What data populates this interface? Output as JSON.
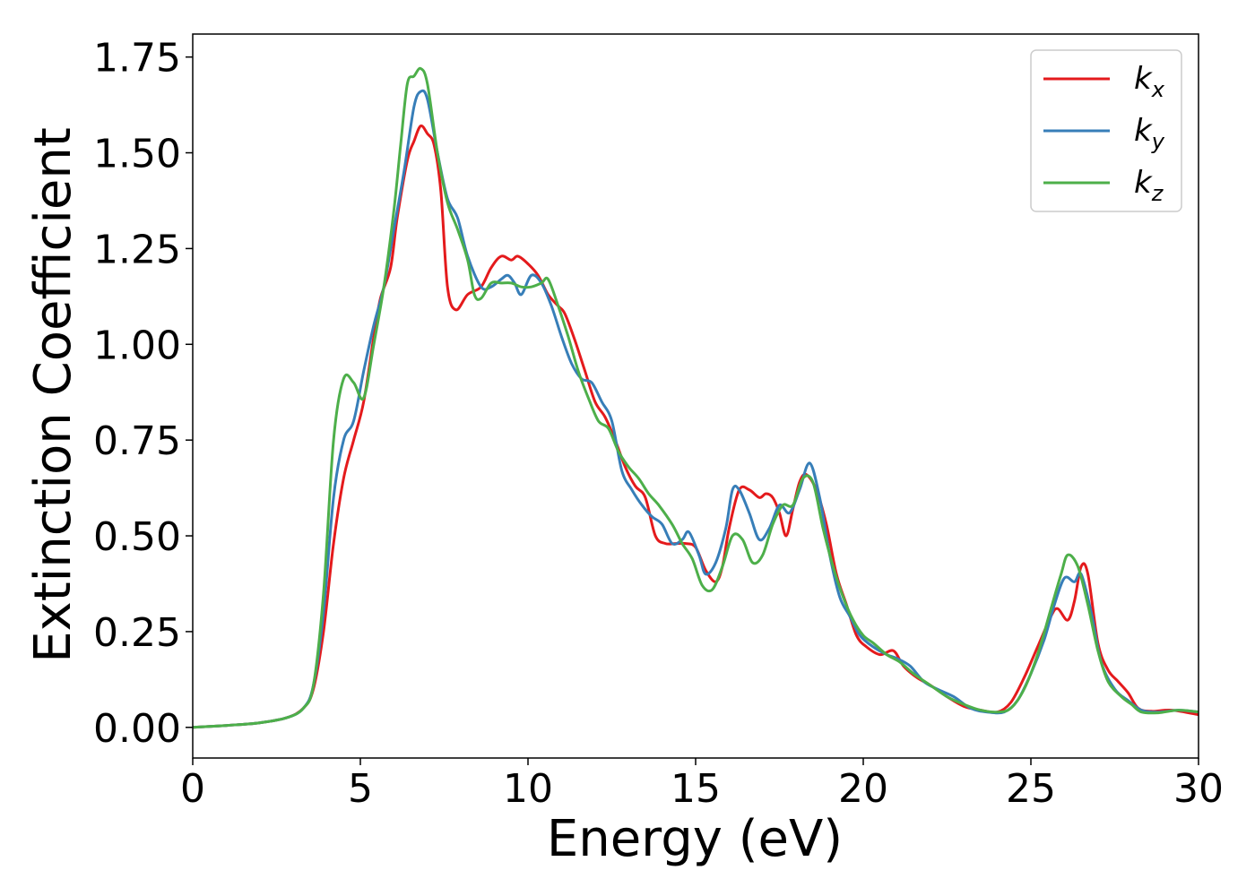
{
  "chart_data": {
    "type": "line",
    "xlabel": "Energy (eV)",
    "ylabel": "Extinction Coefficient",
    "xlim": [
      0,
      30
    ],
    "ylim": [
      -0.08,
      1.81
    ],
    "x_ticks": [
      "0",
      "5",
      "10",
      "15",
      "20",
      "25",
      "30"
    ],
    "y_ticks": [
      "0.00",
      "0.25",
      "0.50",
      "0.75",
      "1.00",
      "1.25",
      "1.50",
      "1.75"
    ],
    "grid": false,
    "legend_position": "top-right",
    "series": [
      {
        "name": "k",
        "subscript": "x",
        "color": "#e41a1c",
        "points": [
          [
            0,
            0.0
          ],
          [
            1,
            0.005
          ],
          [
            2,
            0.012
          ],
          [
            2.8,
            0.025
          ],
          [
            3.3,
            0.05
          ],
          [
            3.6,
            0.1
          ],
          [
            3.9,
            0.25
          ],
          [
            4.2,
            0.48
          ],
          [
            4.5,
            0.65
          ],
          [
            4.8,
            0.75
          ],
          [
            5.1,
            0.85
          ],
          [
            5.4,
            1.02
          ],
          [
            5.6,
            1.12
          ],
          [
            5.9,
            1.2
          ],
          [
            6.1,
            1.33
          ],
          [
            6.4,
            1.48
          ],
          [
            6.6,
            1.53
          ],
          [
            6.8,
            1.57
          ],
          [
            7.0,
            1.55
          ],
          [
            7.2,
            1.52
          ],
          [
            7.4,
            1.4
          ],
          [
            7.6,
            1.15
          ],
          [
            7.85,
            1.09
          ],
          [
            8.2,
            1.13
          ],
          [
            8.6,
            1.15
          ],
          [
            8.9,
            1.2
          ],
          [
            9.2,
            1.23
          ],
          [
            9.5,
            1.22
          ],
          [
            9.7,
            1.23
          ],
          [
            10.0,
            1.21
          ],
          [
            10.3,
            1.18
          ],
          [
            10.6,
            1.13
          ],
          [
            10.9,
            1.1
          ],
          [
            11.1,
            1.08
          ],
          [
            11.4,
            1.01
          ],
          [
            11.7,
            0.93
          ],
          [
            12.0,
            0.85
          ],
          [
            12.3,
            0.81
          ],
          [
            12.6,
            0.75
          ],
          [
            12.9,
            0.68
          ],
          [
            13.2,
            0.63
          ],
          [
            13.5,
            0.6
          ],
          [
            13.8,
            0.5
          ],
          [
            14.1,
            0.48
          ],
          [
            14.4,
            0.48
          ],
          [
            14.7,
            0.48
          ],
          [
            15.0,
            0.47
          ],
          [
            15.3,
            0.41
          ],
          [
            15.6,
            0.38
          ],
          [
            15.8,
            0.42
          ],
          [
            16.0,
            0.52
          ],
          [
            16.3,
            0.62
          ],
          [
            16.6,
            0.62
          ],
          [
            16.9,
            0.6
          ],
          [
            17.1,
            0.61
          ],
          [
            17.3,
            0.6
          ],
          [
            17.5,
            0.56
          ],
          [
            17.7,
            0.5
          ],
          [
            17.9,
            0.57
          ],
          [
            18.1,
            0.64
          ],
          [
            18.3,
            0.66
          ],
          [
            18.6,
            0.62
          ],
          [
            18.9,
            0.53
          ],
          [
            19.2,
            0.4
          ],
          [
            19.5,
            0.32
          ],
          [
            19.8,
            0.24
          ],
          [
            20.1,
            0.21
          ],
          [
            20.5,
            0.19
          ],
          [
            20.9,
            0.2
          ],
          [
            21.2,
            0.16
          ],
          [
            21.6,
            0.13
          ],
          [
            22.0,
            0.11
          ],
          [
            22.5,
            0.08
          ],
          [
            23.0,
            0.055
          ],
          [
            23.5,
            0.045
          ],
          [
            24.0,
            0.04
          ],
          [
            24.4,
            0.065
          ],
          [
            24.8,
            0.13
          ],
          [
            25.2,
            0.21
          ],
          [
            25.6,
            0.29
          ],
          [
            25.8,
            0.31
          ],
          [
            26.1,
            0.28
          ],
          [
            26.3,
            0.33
          ],
          [
            26.5,
            0.42
          ],
          [
            26.7,
            0.4
          ],
          [
            27.0,
            0.22
          ],
          [
            27.3,
            0.15
          ],
          [
            27.6,
            0.12
          ],
          [
            27.9,
            0.09
          ],
          [
            28.2,
            0.05
          ],
          [
            28.6,
            0.042
          ],
          [
            29.2,
            0.045
          ],
          [
            30,
            0.033
          ]
        ]
      },
      {
        "name": "k",
        "subscript": "y",
        "color": "#377eb8",
        "points": [
          [
            0,
            0.0
          ],
          [
            1,
            0.005
          ],
          [
            2,
            0.012
          ],
          [
            2.8,
            0.025
          ],
          [
            3.3,
            0.05
          ],
          [
            3.6,
            0.11
          ],
          [
            3.9,
            0.3
          ],
          [
            4.2,
            0.6
          ],
          [
            4.5,
            0.75
          ],
          [
            4.8,
            0.8
          ],
          [
            5.1,
            0.93
          ],
          [
            5.4,
            1.05
          ],
          [
            5.7,
            1.15
          ],
          [
            6.0,
            1.3
          ],
          [
            6.3,
            1.45
          ],
          [
            6.6,
            1.62
          ],
          [
            6.8,
            1.66
          ],
          [
            7.0,
            1.64
          ],
          [
            7.3,
            1.5
          ],
          [
            7.6,
            1.38
          ],
          [
            7.9,
            1.33
          ],
          [
            8.2,
            1.23
          ],
          [
            8.6,
            1.15
          ],
          [
            8.9,
            1.15
          ],
          [
            9.2,
            1.17
          ],
          [
            9.4,
            1.18
          ],
          [
            9.6,
            1.16
          ],
          [
            9.8,
            1.13
          ],
          [
            10.1,
            1.18
          ],
          [
            10.4,
            1.16
          ],
          [
            10.7,
            1.1
          ],
          [
            11.0,
            1.02
          ],
          [
            11.3,
            0.95
          ],
          [
            11.6,
            0.91
          ],
          [
            11.9,
            0.9
          ],
          [
            12.2,
            0.85
          ],
          [
            12.5,
            0.8
          ],
          [
            12.8,
            0.67
          ],
          [
            13.1,
            0.62
          ],
          [
            13.4,
            0.58
          ],
          [
            13.7,
            0.55
          ],
          [
            14.0,
            0.53
          ],
          [
            14.3,
            0.48
          ],
          [
            14.6,
            0.49
          ],
          [
            14.8,
            0.51
          ],
          [
            15.1,
            0.45
          ],
          [
            15.3,
            0.4
          ],
          [
            15.6,
            0.43
          ],
          [
            15.9,
            0.52
          ],
          [
            16.1,
            0.62
          ],
          [
            16.3,
            0.62
          ],
          [
            16.6,
            0.56
          ],
          [
            16.9,
            0.49
          ],
          [
            17.2,
            0.52
          ],
          [
            17.5,
            0.58
          ],
          [
            17.8,
            0.56
          ],
          [
            18.1,
            0.62
          ],
          [
            18.4,
            0.69
          ],
          [
            18.7,
            0.6
          ],
          [
            19.0,
            0.45
          ],
          [
            19.3,
            0.34
          ],
          [
            19.6,
            0.29
          ],
          [
            19.9,
            0.24
          ],
          [
            20.3,
            0.21
          ],
          [
            20.7,
            0.19
          ],
          [
            21.0,
            0.18
          ],
          [
            21.4,
            0.16
          ],
          [
            21.8,
            0.12
          ],
          [
            22.2,
            0.1
          ],
          [
            22.7,
            0.08
          ],
          [
            23.2,
            0.05
          ],
          [
            23.7,
            0.04
          ],
          [
            24.2,
            0.04
          ],
          [
            24.6,
            0.07
          ],
          [
            25.0,
            0.14
          ],
          [
            25.4,
            0.23
          ],
          [
            25.7,
            0.32
          ],
          [
            26.0,
            0.39
          ],
          [
            26.3,
            0.38
          ],
          [
            26.5,
            0.4
          ],
          [
            26.8,
            0.3
          ],
          [
            27.1,
            0.17
          ],
          [
            27.5,
            0.1
          ],
          [
            27.9,
            0.07
          ],
          [
            28.3,
            0.045
          ],
          [
            28.8,
            0.04
          ],
          [
            29.4,
            0.045
          ],
          [
            30,
            0.04
          ]
        ]
      },
      {
        "name": "k",
        "subscript": "z",
        "color": "#4daf4a",
        "points": [
          [
            0,
            0.0
          ],
          [
            1,
            0.005
          ],
          [
            2,
            0.012
          ],
          [
            2.8,
            0.025
          ],
          [
            3.3,
            0.05
          ],
          [
            3.6,
            0.11
          ],
          [
            3.9,
            0.35
          ],
          [
            4.2,
            0.75
          ],
          [
            4.5,
            0.91
          ],
          [
            4.8,
            0.9
          ],
          [
            5.1,
            0.86
          ],
          [
            5.4,
            1.0
          ],
          [
            5.7,
            1.15
          ],
          [
            6.0,
            1.35
          ],
          [
            6.2,
            1.52
          ],
          [
            6.4,
            1.68
          ],
          [
            6.6,
            1.7
          ],
          [
            6.8,
            1.72
          ],
          [
            7.0,
            1.68
          ],
          [
            7.3,
            1.5
          ],
          [
            7.6,
            1.37
          ],
          [
            7.9,
            1.3
          ],
          [
            8.2,
            1.22
          ],
          [
            8.4,
            1.13
          ],
          [
            8.6,
            1.12
          ],
          [
            8.9,
            1.16
          ],
          [
            9.2,
            1.16
          ],
          [
            9.5,
            1.16
          ],
          [
            9.8,
            1.15
          ],
          [
            10.1,
            1.15
          ],
          [
            10.4,
            1.16
          ],
          [
            10.6,
            1.17
          ],
          [
            10.9,
            1.1
          ],
          [
            11.2,
            1.02
          ],
          [
            11.5,
            0.93
          ],
          [
            11.8,
            0.86
          ],
          [
            12.1,
            0.8
          ],
          [
            12.4,
            0.78
          ],
          [
            12.7,
            0.72
          ],
          [
            13.0,
            0.68
          ],
          [
            13.3,
            0.65
          ],
          [
            13.6,
            0.61
          ],
          [
            13.9,
            0.58
          ],
          [
            14.3,
            0.53
          ],
          [
            14.6,
            0.48
          ],
          [
            14.9,
            0.44
          ],
          [
            15.2,
            0.37
          ],
          [
            15.5,
            0.36
          ],
          [
            15.8,
            0.42
          ],
          [
            16.1,
            0.5
          ],
          [
            16.4,
            0.49
          ],
          [
            16.7,
            0.43
          ],
          [
            17.0,
            0.45
          ],
          [
            17.3,
            0.53
          ],
          [
            17.6,
            0.58
          ],
          [
            17.9,
            0.58
          ],
          [
            18.2,
            0.65
          ],
          [
            18.5,
            0.64
          ],
          [
            18.8,
            0.52
          ],
          [
            19.1,
            0.42
          ],
          [
            19.4,
            0.34
          ],
          [
            19.7,
            0.28
          ],
          [
            20.0,
            0.24
          ],
          [
            20.3,
            0.22
          ],
          [
            20.7,
            0.19
          ],
          [
            21.1,
            0.17
          ],
          [
            21.5,
            0.14
          ],
          [
            22.0,
            0.11
          ],
          [
            22.5,
            0.08
          ],
          [
            23.0,
            0.06
          ],
          [
            23.5,
            0.045
          ],
          [
            24.0,
            0.04
          ],
          [
            24.4,
            0.05
          ],
          [
            24.8,
            0.1
          ],
          [
            25.2,
            0.19
          ],
          [
            25.6,
            0.31
          ],
          [
            25.9,
            0.4
          ],
          [
            26.1,
            0.45
          ],
          [
            26.4,
            0.42
          ],
          [
            26.7,
            0.32
          ],
          [
            27.0,
            0.2
          ],
          [
            27.3,
            0.12
          ],
          [
            27.7,
            0.08
          ],
          [
            28.0,
            0.06
          ],
          [
            28.3,
            0.04
          ],
          [
            28.8,
            0.038
          ],
          [
            29.4,
            0.045
          ],
          [
            30,
            0.04
          ]
        ]
      }
    ]
  }
}
